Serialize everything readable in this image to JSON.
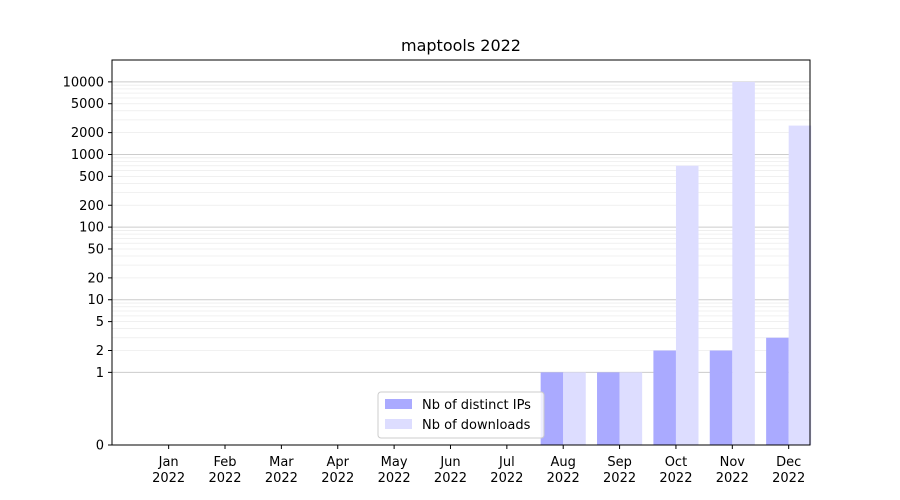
{
  "chart_data": {
    "type": "bar",
    "title": "maptools 2022",
    "xlabel": "",
    "ylabel": "",
    "yscale": "symlog",
    "ylim": [
      0,
      20000
    ],
    "grid": true,
    "legend_position": "lower center",
    "categories": [
      [
        "Jan",
        "2022"
      ],
      [
        "Feb",
        "2022"
      ],
      [
        "Mar",
        "2022"
      ],
      [
        "Apr",
        "2022"
      ],
      [
        "May",
        "2022"
      ],
      [
        "Jun",
        "2022"
      ],
      [
        "Jul",
        "2022"
      ],
      [
        "Aug",
        "2022"
      ],
      [
        "Sep",
        "2022"
      ],
      [
        "Oct",
        "2022"
      ],
      [
        "Nov",
        "2022"
      ],
      [
        "Dec",
        "2022"
      ]
    ],
    "yticks": [
      0,
      1,
      2,
      5,
      10,
      20,
      50,
      100,
      200,
      500,
      1000,
      2000,
      5000,
      10000
    ],
    "ytick_labels": [
      "0",
      "1",
      "2",
      "5",
      "10",
      "20",
      "50",
      "100",
      "200",
      "500",
      "1000",
      "2000",
      "5000",
      "10000"
    ],
    "series": [
      {
        "name": "Nb of distinct IPs",
        "color": "#aaaaff",
        "values": [
          0,
          0,
          0,
          0,
          0,
          0,
          0,
          1,
          1,
          2,
          2,
          3
        ]
      },
      {
        "name": "Nb of downloads",
        "color": "#ddddff",
        "values": [
          0,
          0,
          0,
          0,
          0,
          0,
          0,
          1,
          1,
          700,
          10000,
          2500
        ]
      }
    ]
  }
}
